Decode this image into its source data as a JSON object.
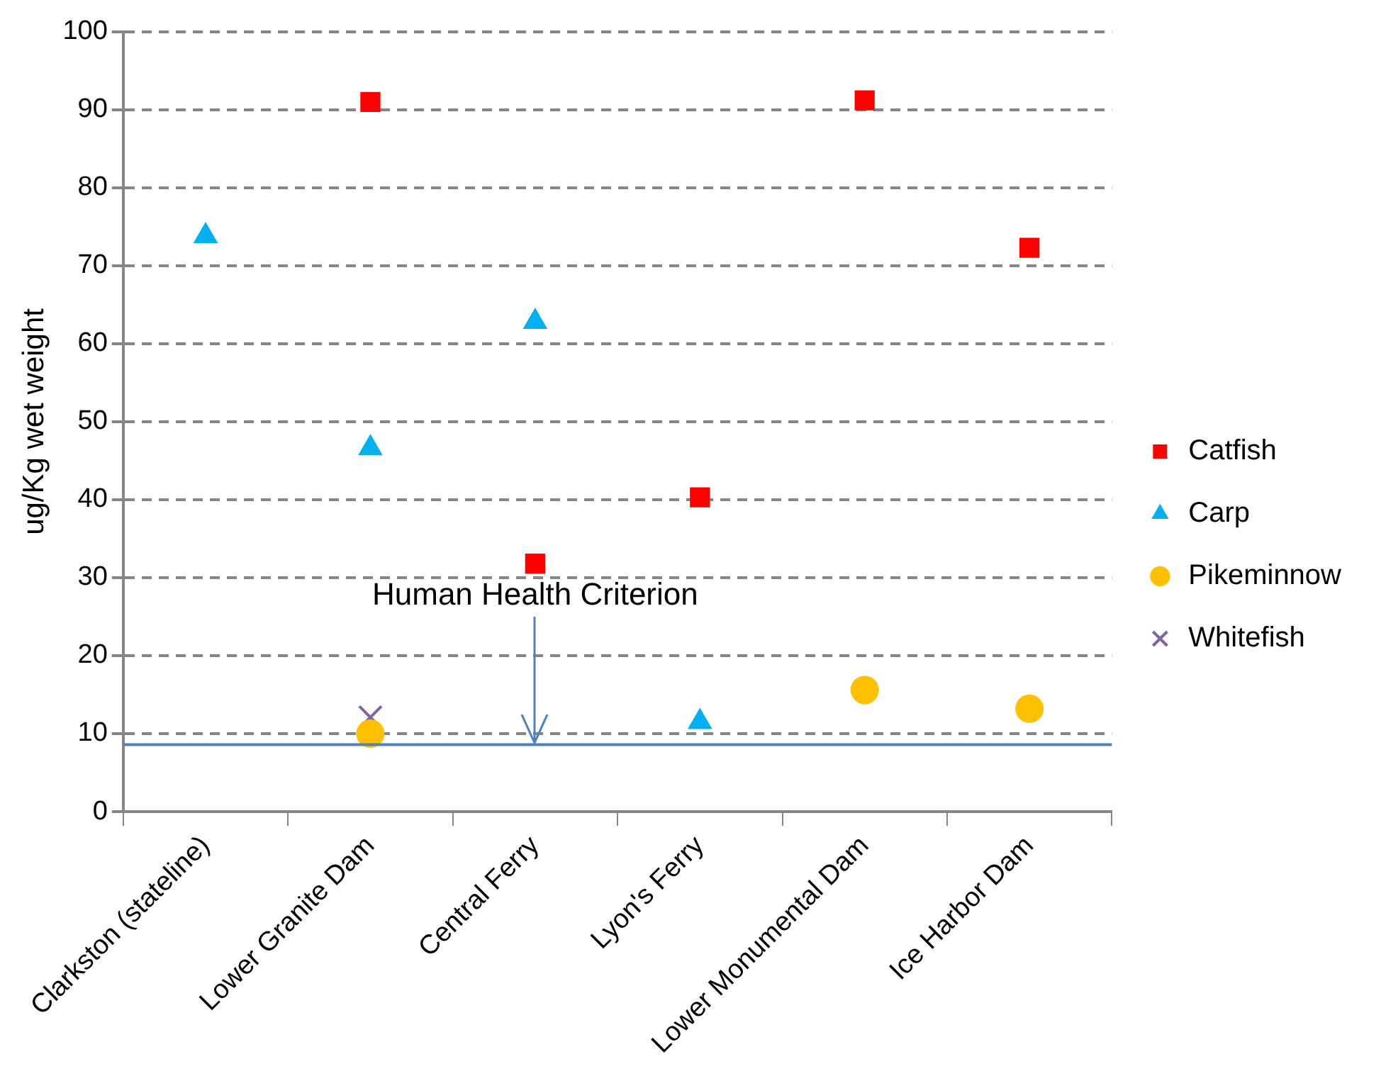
{
  "chart_data": {
    "type": "scatter",
    "categories": [
      "Clarkston (stateline)",
      "Lower Granite Dam",
      "Central Ferry",
      "Lyon's Ferry",
      "Lower Monumental Dam",
      "Ice Harbor Dam"
    ],
    "ylabel": "ug/Kg wet weight",
    "ylim": [
      0,
      100
    ],
    "yticks": [
      0,
      10,
      20,
      30,
      40,
      50,
      60,
      70,
      80,
      90,
      100
    ],
    "grid": "y",
    "legend": "right",
    "series": [
      {
        "name": "Catfish",
        "color": "#ff0000",
        "marker": "square",
        "values": [
          null,
          91,
          31.8,
          40.3,
          91.2,
          72.3
        ]
      },
      {
        "name": "Carp",
        "color": "#00b0f0",
        "marker": "triangle",
        "values": [
          73.8,
          46.6,
          62.8,
          11.5,
          null,
          null
        ]
      },
      {
        "name": "Pikeminnow",
        "color": "#ffc000",
        "marker": "circle",
        "values": [
          null,
          10,
          null,
          null,
          15.6,
          13.2
        ]
      },
      {
        "name": "Whitefish",
        "color": "#8064a2",
        "marker": "cross",
        "values": [
          null,
          12.1,
          null,
          null,
          null,
          null
        ]
      }
    ],
    "ref_lines": [
      {
        "axis": "y",
        "value": 8.6,
        "color": "#4f81bd",
        "line_style": "solid"
      }
    ],
    "annotations": [
      {
        "text": "Human Health Criterion",
        "x": "Central Ferry",
        "y": 8.6
      }
    ]
  }
}
